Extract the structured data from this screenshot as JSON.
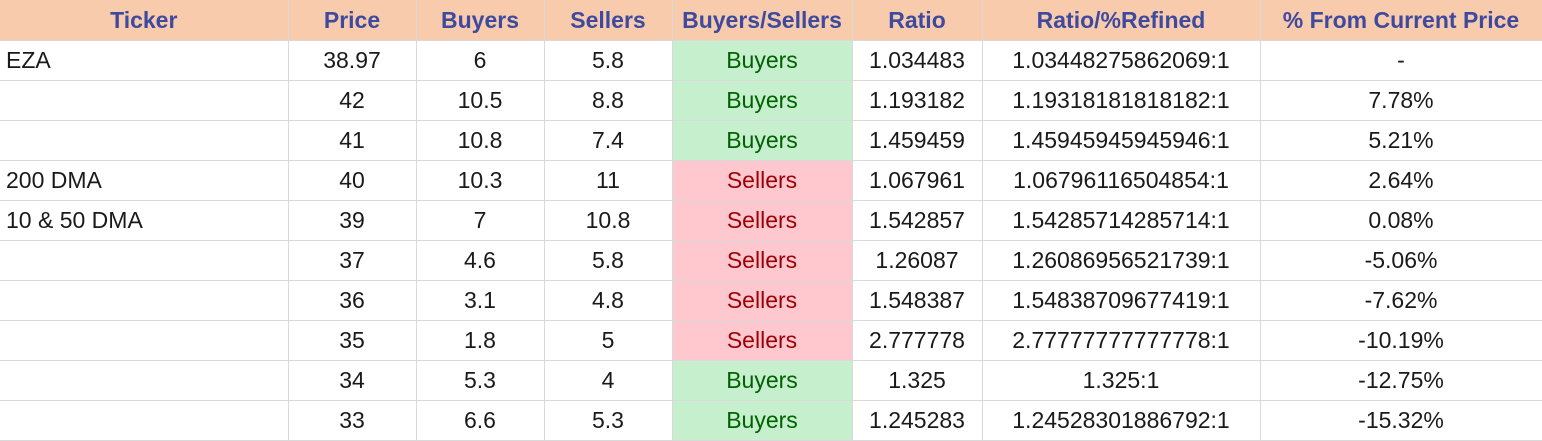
{
  "table": {
    "headers": [
      "Ticker",
      "Price",
      "Buyers",
      "Sellers",
      "Buyers/Sellers",
      "Ratio",
      "Ratio/%Refined",
      "% From Current Price"
    ],
    "rows": [
      {
        "ticker": "EZA",
        "price": "38.97",
        "buyers": "6",
        "sellers": "5.8",
        "side": "Buyers",
        "ratio": "1.034483",
        "refined": "1.03448275862069:1",
        "pct": "-"
      },
      {
        "ticker": "",
        "price": "42",
        "buyers": "10.5",
        "sellers": "8.8",
        "side": "Buyers",
        "ratio": "1.193182",
        "refined": "1.19318181818182:1",
        "pct": "7.78%"
      },
      {
        "ticker": "",
        "price": "41",
        "buyers": "10.8",
        "sellers": "7.4",
        "side": "Buyers",
        "ratio": "1.459459",
        "refined": "1.45945945945946:1",
        "pct": "5.21%"
      },
      {
        "ticker": "200 DMA",
        "price": "40",
        "buyers": "10.3",
        "sellers": "11",
        "side": "Sellers",
        "ratio": "1.067961",
        "refined": "1.06796116504854:1",
        "pct": "2.64%"
      },
      {
        "ticker": "10 & 50 DMA",
        "price": "39",
        "buyers": "7",
        "sellers": "10.8",
        "side": "Sellers",
        "ratio": "1.542857",
        "refined": "1.54285714285714:1",
        "pct": "0.08%"
      },
      {
        "ticker": "",
        "price": "37",
        "buyers": "4.6",
        "sellers": "5.8",
        "side": "Sellers",
        "ratio": "1.26087",
        "refined": "1.26086956521739:1",
        "pct": "-5.06%"
      },
      {
        "ticker": "",
        "price": "36",
        "buyers": "3.1",
        "sellers": "4.8",
        "side": "Sellers",
        "ratio": "1.548387",
        "refined": "1.54838709677419:1",
        "pct": "-7.62%"
      },
      {
        "ticker": "",
        "price": "35",
        "buyers": "1.8",
        "sellers": "5",
        "side": "Sellers",
        "ratio": "2.777778",
        "refined": "2.77777777777778:1",
        "pct": "-10.19%"
      },
      {
        "ticker": "",
        "price": "34",
        "buyers": "5.3",
        "sellers": "4",
        "side": "Buyers",
        "ratio": "1.325",
        "refined": "1.325:1",
        "pct": "-12.75%"
      },
      {
        "ticker": "",
        "price": "33",
        "buyers": "6.6",
        "sellers": "5.3",
        "side": "Buyers",
        "ratio": "1.245283",
        "refined": "1.24528301886792:1",
        "pct": "-15.32%"
      }
    ]
  },
  "colors": {
    "header_bg": "#f8cbad",
    "header_text": "#3e4a9e",
    "buyers_bg": "#c6efce",
    "buyers_text": "#006100",
    "sellers_bg": "#ffc7ce",
    "sellers_text": "#9c0006",
    "gridline": "#d9d9d9"
  }
}
